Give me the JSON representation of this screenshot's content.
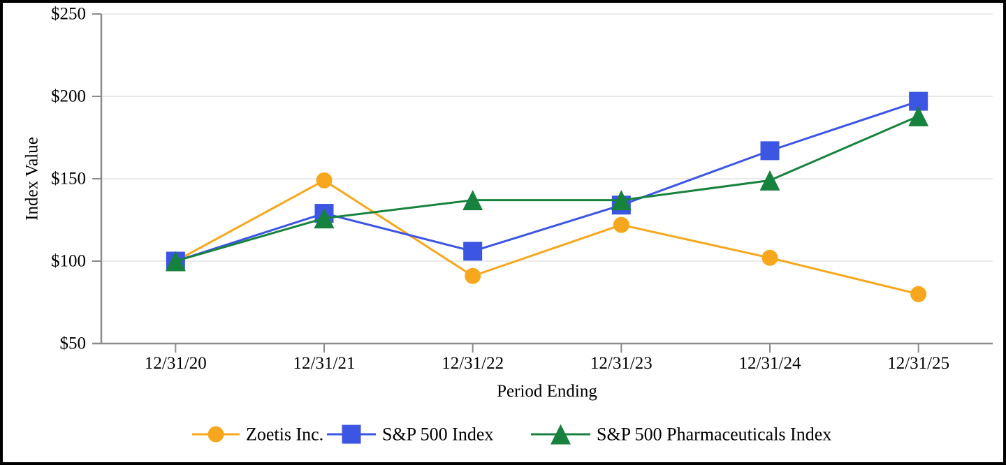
{
  "figure": {
    "background": "#FFFFFF",
    "border_color": "#000000",
    "axis_color": "#8A8A8A",
    "gridline_color": "#EAEAEA"
  },
  "chart_data": {
    "type": "line",
    "title": "",
    "xlabel": "Period Ending",
    "ylabel": "Index Value",
    "categories": [
      "12/31/20",
      "12/31/21",
      "12/31/22",
      "12/31/23",
      "12/31/24",
      "12/31/25"
    ],
    "series": [
      {
        "name": "Zoetis Inc.",
        "marker": "circle",
        "color": "#F7A71E",
        "values": [
          100,
          149,
          91,
          122,
          102,
          80
        ]
      },
      {
        "name": "S&P 500 Index",
        "marker": "square",
        "color": "#3C55E3",
        "values": [
          100,
          129,
          106,
          134,
          167,
          197
        ]
      },
      {
        "name": "S&P 500 Pharmaceuticals Index",
        "marker": "triangle",
        "color": "#17823E",
        "values": [
          100,
          126,
          137,
          137,
          149,
          188
        ]
      }
    ],
    "ylim": [
      50,
      250
    ],
    "yticks": [
      {
        "value": 50,
        "label": "$50"
      },
      {
        "value": 100,
        "label": "$100"
      },
      {
        "value": 150,
        "label": "$150"
      },
      {
        "value": 200,
        "label": "$200"
      },
      {
        "value": 250,
        "label": "$250"
      }
    ],
    "grid": true,
    "legend_position": "bottom"
  }
}
